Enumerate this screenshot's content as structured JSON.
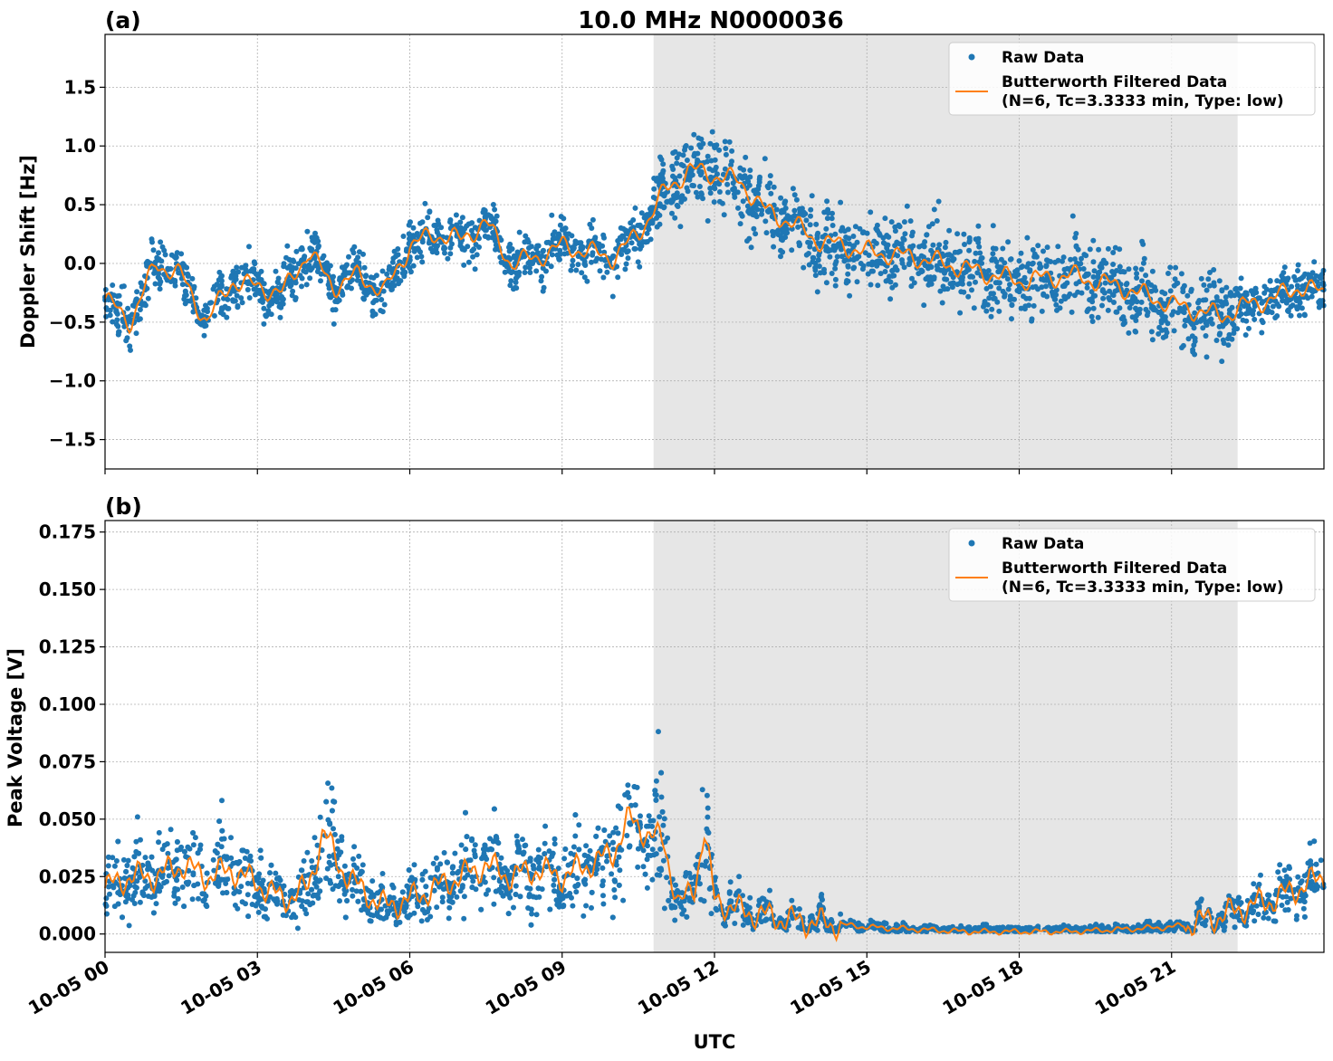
{
  "figure_title": "10.0 MHz N0000036",
  "colors": {
    "raw": "#1f77b4",
    "filtered": "#ff7f0e",
    "shade": "#e6e6e6"
  },
  "chart_data": [
    {
      "type": "scatter",
      "panel_label": "(a)",
      "ylabel": "Doppler Shift [Hz]",
      "xlabel": "",
      "xlim": [
        0,
        24
      ],
      "ylim": [
        -1.75,
        1.95
      ],
      "yticks": [
        -1.5,
        -1.0,
        -0.5,
        0.0,
        0.5,
        1.0,
        1.5
      ],
      "ytick_labels": [
        "−1.5",
        "−1.0",
        "−0.5",
        "0.0",
        "0.5",
        "1.0",
        "1.5"
      ],
      "grid": true,
      "legend_position": "top-right",
      "shaded_region_hours": [
        10.8,
        22.3
      ],
      "legend": [
        "Raw Data",
        "Butterworth Filtered Data",
        "(N=6, Tc=3.3333 min, Type: low)"
      ],
      "series": [
        {
          "name": "Butterworth Filtered Data",
          "x_hours": [
            0,
            0.5,
            1,
            1.5,
            2,
            2.5,
            3,
            3.5,
            4,
            4.5,
            5,
            5.5,
            6,
            6.5,
            7,
            7.5,
            8,
            8.5,
            9,
            9.5,
            10,
            10.5,
            11,
            11.5,
            12,
            12.5,
            13,
            13.5,
            14,
            15,
            16,
            17,
            18,
            19,
            20,
            21,
            22,
            22.5,
            23,
            23.5,
            24
          ],
          "y": [
            -0.3,
            -0.5,
            0.0,
            -0.1,
            -0.5,
            -0.15,
            -0.2,
            -0.25,
            0.1,
            -0.2,
            -0.1,
            -0.25,
            0.15,
            0.25,
            0.2,
            0.35,
            0.0,
            0.05,
            0.15,
            0.1,
            0.05,
            0.25,
            0.6,
            0.8,
            0.75,
            0.7,
            0.45,
            0.35,
            0.2,
            0.1,
            0.05,
            -0.05,
            -0.15,
            -0.1,
            -0.2,
            -0.35,
            -0.45,
            -0.35,
            -0.3,
            -0.2,
            -0.25
          ]
        }
      ]
    },
    {
      "type": "scatter",
      "panel_label": "(b)",
      "ylabel": "Peak Voltage [V]",
      "xlabel": "UTC",
      "xlim": [
        0,
        24
      ],
      "ylim": [
        -0.008,
        0.18
      ],
      "yticks": [
        0.0,
        0.025,
        0.05,
        0.075,
        0.1,
        0.125,
        0.15,
        0.175
      ],
      "ytick_labels": [
        "0.000",
        "0.025",
        "0.050",
        "0.075",
        "0.100",
        "0.125",
        "0.150",
        "0.175"
      ],
      "xticks_hours": [
        0,
        3,
        6,
        9,
        12,
        15,
        18,
        21
      ],
      "xtick_labels": [
        "10-05 00",
        "10-05 03",
        "10-05 06",
        "10-05 09",
        "10-05 12",
        "10-05 15",
        "10-05 18",
        "10-05 21"
      ],
      "grid": true,
      "legend_position": "top-right",
      "shaded_region_hours": [
        10.8,
        22.3
      ],
      "legend": [
        "Raw Data",
        "Butterworth Filtered Data",
        "(N=6, Tc=3.3333 min, Type: low)"
      ],
      "series": [
        {
          "name": "Butterworth Filtered Data",
          "x_hours": [
            0,
            0.5,
            1,
            1.5,
            2,
            2.5,
            3,
            3.5,
            4,
            4.3,
            4.6,
            5,
            5.5,
            6,
            6.5,
            7,
            7.5,
            8,
            8.5,
            9,
            9.5,
            10,
            10.3,
            10.6,
            11,
            11.3,
            11.6,
            11.8,
            12,
            12.5,
            13,
            13.5,
            14,
            14.5,
            15,
            16,
            17,
            18,
            19,
            20,
            21,
            21.5,
            22,
            22.5,
            23,
            23.5,
            24
          ],
          "y": [
            0.02,
            0.025,
            0.025,
            0.03,
            0.025,
            0.028,
            0.022,
            0.015,
            0.02,
            0.045,
            0.03,
            0.02,
            0.012,
            0.015,
            0.02,
            0.025,
            0.03,
            0.025,
            0.028,
            0.025,
            0.03,
            0.035,
            0.05,
            0.045,
            0.04,
            0.012,
            0.02,
            0.045,
            0.015,
            0.01,
            0.008,
            0.006,
            0.005,
            0.004,
            0.003,
            0.002,
            0.001,
            0.001,
            0.001,
            0.002,
            0.003,
            0.005,
            0.008,
            0.012,
            0.015,
            0.02,
            0.025
          ]
        }
      ]
    }
  ]
}
